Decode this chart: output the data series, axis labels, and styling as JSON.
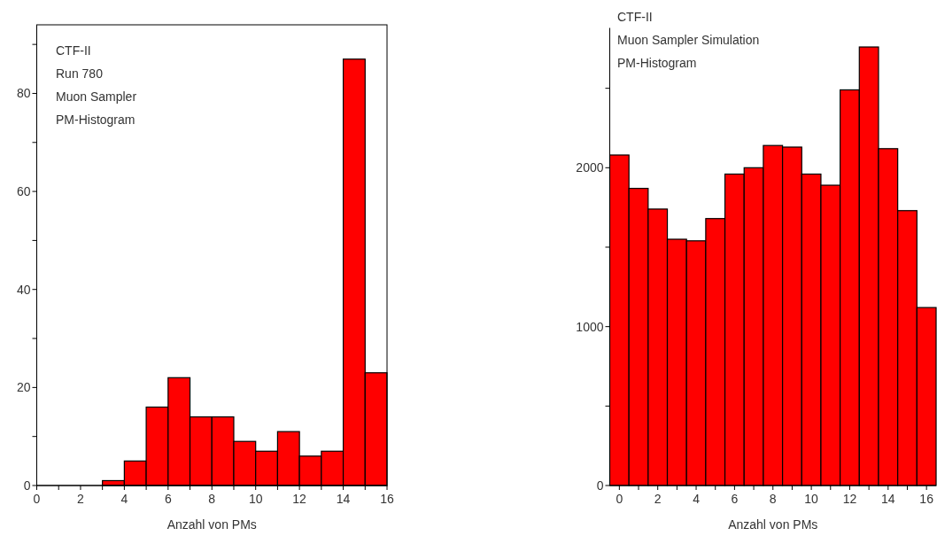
{
  "chart_data": [
    {
      "type": "histogram",
      "xlabel": "Anzahl von PMs",
      "annotations": [
        "CTF-II",
        "Run 780",
        "Muon Sampler",
        "PM-Histogram"
      ],
      "bins": [
        3,
        4,
        5,
        6,
        7,
        8,
        9,
        10,
        11,
        12,
        13,
        14,
        15,
        16
      ],
      "values": [
        1,
        5,
        16,
        22,
        14,
        14,
        9,
        7,
        11,
        6,
        7,
        87,
        23
      ],
      "color": "#ff0000",
      "xlim": [
        0,
        16
      ],
      "ylim": [
        0,
        94
      ],
      "xticks": [
        0,
        {
          "value": 1,
          "label": null
        },
        2,
        {
          "value": 3,
          "label": null
        },
        4,
        {
          "value": 5,
          "label": null
        },
        6,
        {
          "value": 7,
          "label": null
        },
        8,
        {
          "value": 9,
          "label": null
        },
        10,
        {
          "value": 11,
          "label": null
        },
        12,
        {
          "value": 13,
          "label": null
        },
        14,
        {
          "value": 15,
          "label": null
        },
        16
      ],
      "yticks": [
        0,
        {
          "value": 10,
          "label": null
        },
        20,
        {
          "value": 30,
          "label": null
        },
        40,
        {
          "value": 50,
          "label": null
        },
        60,
        {
          "value": 70,
          "label": null
        },
        80,
        {
          "value": 90,
          "label": null
        }
      ],
      "grid": false
    },
    {
      "type": "histogram",
      "xlabel": "Anzahl von PMs",
      "annotations": [
        "CTF-II",
        "Muon Sampler Simulation",
        "PM-Histogram"
      ],
      "bins": [
        -0.5,
        0.5,
        1.5,
        2.5,
        3.5,
        4.5,
        5.5,
        6.5,
        7.5,
        8.5,
        9.5,
        10.5,
        11.5,
        12.5,
        13.5,
        14.5,
        15.5,
        16.5
      ],
      "values": [
        2080,
        1870,
        1740,
        1550,
        1540,
        1680,
        1960,
        2000,
        2140,
        2130,
        1960,
        1890,
        2490,
        2760,
        2120,
        1730,
        1120
      ],
      "color": "#ff0000",
      "xlim": [
        -0.5,
        16.5
      ],
      "ylim": [
        0,
        2880
      ],
      "xticks": [
        0,
        {
          "value": 1,
          "label": null
        },
        2,
        {
          "value": 3,
          "label": null
        },
        4,
        {
          "value": 5,
          "label": null
        },
        6,
        {
          "value": 7,
          "label": null
        },
        8,
        {
          "value": 9,
          "label": null
        },
        10,
        {
          "value": 11,
          "label": null
        },
        12,
        {
          "value": 13,
          "label": null
        },
        14,
        {
          "value": 15,
          "label": null
        },
        16
      ],
      "yticks": [
        0,
        {
          "value": 500,
          "label": null
        },
        1000,
        {
          "value": 1500,
          "label": null
        },
        2000,
        {
          "value": 2500,
          "label": null
        }
      ],
      "grid": false
    }
  ]
}
